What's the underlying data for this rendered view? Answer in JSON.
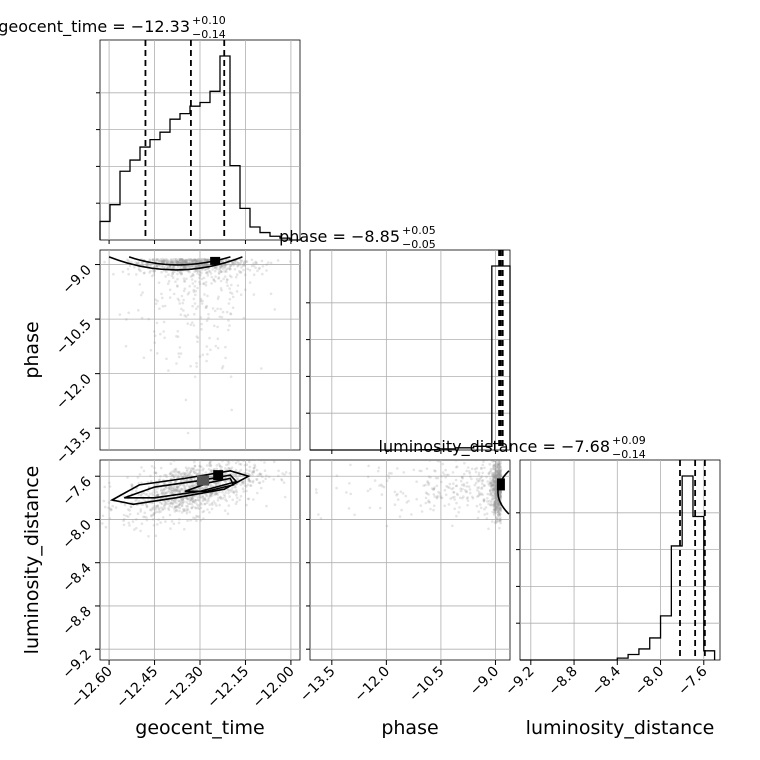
{
  "chart_data": {
    "type": "corner",
    "parameters": [
      {
        "name": "geocent_time",
        "axis_label": "geocent_time",
        "title_text": "geocent_time = −12.33",
        "title_sup": "+0.10",
        "title_sub": "−0.14",
        "median": -12.33,
        "upper_err": 0.1,
        "lower_err": 0.14,
        "range": [
          -12.63,
          -11.97
        ],
        "ticks": [
          -12.6,
          -12.45,
          -12.3,
          -12.15,
          -12.0
        ],
        "tick_labels": [
          "−12.60",
          "−12.45",
          "−12.30",
          "−12.15",
          "−12.00"
        ],
        "quantiles": [
          -12.48,
          -12.33,
          -12.22
        ],
        "hist_edges": [
          -12.63,
          -12.597,
          -12.564,
          -12.531,
          -12.498,
          -12.465,
          -12.432,
          -12.399,
          -12.366,
          -12.333,
          -12.3,
          -12.267,
          -12.234,
          -12.201,
          -12.168,
          -12.135,
          -12.102,
          -12.069,
          -12.036,
          -12.003,
          -11.97
        ],
        "hist_counts": [
          0.1,
          0.19,
          0.37,
          0.43,
          0.5,
          0.54,
          0.58,
          0.65,
          0.68,
          0.72,
          0.74,
          0.8,
          0.99,
          0.4,
          0.17,
          0.07,
          0.04,
          0.02,
          0.01,
          0.0
        ]
      },
      {
        "name": "phase",
        "axis_label": "phase",
        "title_text": "phase = −8.85",
        "title_sup": "+0.05",
        "title_sub": "−0.05",
        "median": -8.85,
        "upper_err": 0.05,
        "lower_err": 0.05,
        "range": [
          -14.1,
          -8.6
        ],
        "ticks": [
          -13.5,
          -12.0,
          -10.5,
          -9.0
        ],
        "tick_labels": [
          "−13.5",
          "−12.0",
          "−10.5",
          "−9.0"
        ],
        "quantiles": [
          -8.9,
          -8.85,
          -8.8
        ],
        "hist_edges": [
          -14.1,
          -13.6,
          -13.1,
          -12.6,
          -12.1,
          -11.6,
          -11.1,
          -10.6,
          -10.1,
          -9.6,
          -9.1,
          -8.6
        ],
        "hist_counts": [
          0.0,
          0.0,
          0.0,
          0.0,
          0.0,
          0.0,
          0.002,
          0.006,
          0.012,
          0.02,
          1.0
        ]
      },
      {
        "name": "luminosity_distance",
        "axis_label": "luminosity_distance",
        "title_text": "luminosity_distance = −7.68",
        "title_sup": "+0.09",
        "title_sub": "−0.14",
        "median": -7.68,
        "upper_err": 0.09,
        "lower_err": 0.14,
        "range": [
          -9.3,
          -7.45
        ],
        "ticks": [
          -9.2,
          -8.8,
          -8.4,
          -8.0,
          -7.6
        ],
        "tick_labels": [
          "−9.2",
          "−8.8",
          "−8.4",
          "−8.0",
          "−7.6"
        ],
        "quantiles": [
          -7.82,
          -7.68,
          -7.59
        ],
        "hist_edges": [
          -9.3,
          -9.2,
          -9.1,
          -9.0,
          -8.9,
          -8.8,
          -8.7,
          -8.6,
          -8.5,
          -8.4,
          -8.3,
          -8.2,
          -8.1,
          -8.0,
          -7.9,
          -7.8,
          -7.7,
          -7.6,
          -7.5
        ],
        "hist_counts": [
          0.0,
          0.0,
          0.0,
          0.0,
          0.0,
          0.0,
          0.0,
          0.0,
          0.0,
          0.01,
          0.03,
          0.06,
          0.12,
          0.24,
          0.62,
          1.0,
          0.78,
          0.05
        ]
      }
    ],
    "grid": true,
    "scatter_alpha": "low",
    "contour_levels": 3
  }
}
